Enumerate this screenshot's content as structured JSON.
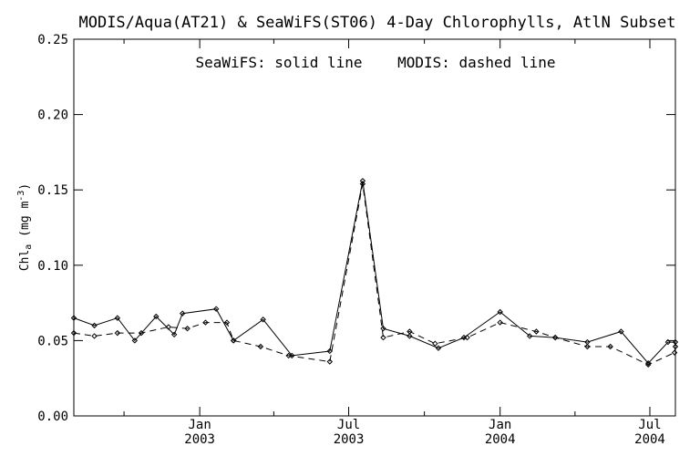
{
  "chart_data": {
    "type": "line",
    "title": "MODIS/Aqua(AT21) & SeaWiFS(ST06) 4-Day Chlorophylls, AtlN Subset",
    "annotation": "SeaWiFS: solid line    MODIS: dashed line",
    "ylabel": "Chl",
    "ylabel_sub": "a",
    "ylabel_unit": "(mg m",
    "ylabel_sup": "-3",
    "ylabel_close": ")",
    "ylim": [
      0.0,
      0.25
    ],
    "xlim": [
      "2002-08-01",
      "2004-08-01"
    ],
    "y_ticks": [
      "0.00",
      "0.05",
      "0.10",
      "0.15",
      "0.20",
      "0.25"
    ],
    "x_ticks": [
      {
        "date": "2003-01-01",
        "month": "Jan",
        "year": "2003"
      },
      {
        "date": "2003-07-01",
        "month": "Jul",
        "year": "2003"
      },
      {
        "date": "2004-01-01",
        "month": "Jan",
        "year": "2004"
      },
      {
        "date": "2004-07-01",
        "month": "Jul",
        "year": "2004"
      }
    ],
    "x_minor_ticks": [
      "2002-10-01",
      "2003-04-01",
      "2003-10-01",
      "2004-04-01"
    ],
    "series": [
      {
        "name": "SeaWiFS",
        "style": "solid",
        "color": "#000000",
        "points": [
          [
            "2002-08-01",
            0.065
          ],
          [
            "2002-08-26",
            0.06
          ],
          [
            "2002-09-23",
            0.065
          ],
          [
            "2002-10-14",
            0.05
          ],
          [
            "2002-11-09",
            0.066
          ],
          [
            "2002-12-01",
            0.054
          ],
          [
            "2002-12-11",
            0.068
          ],
          [
            "2003-01-21",
            0.071
          ],
          [
            "2003-02-11",
            0.05
          ],
          [
            "2003-03-19",
            0.064
          ],
          [
            "2003-04-23",
            0.04
          ],
          [
            "2003-06-08",
            0.043
          ],
          [
            "2003-07-18",
            0.156
          ],
          [
            "2003-08-12",
            0.058
          ],
          [
            "2003-09-13",
            0.053
          ],
          [
            "2003-10-18",
            0.045
          ],
          [
            "2003-11-18",
            0.052
          ],
          [
            "2004-01-01",
            0.069
          ],
          [
            "2004-02-06",
            0.053
          ],
          [
            "2004-03-08",
            0.052
          ],
          [
            "2004-04-16",
            0.049
          ],
          [
            "2004-05-27",
            0.056
          ],
          [
            "2004-06-29",
            0.035
          ],
          [
            "2004-07-23",
            0.049
          ],
          [
            "2004-08-01",
            0.049
          ]
        ]
      },
      {
        "name": "MODIS",
        "style": "dashed",
        "color": "#000000",
        "points": [
          [
            "2002-08-01",
            0.055
          ],
          [
            "2002-08-26",
            0.053
          ],
          [
            "2002-09-23",
            0.055
          ],
          [
            "2002-10-22",
            0.055
          ],
          [
            "2002-11-24",
            0.059
          ],
          [
            "2002-12-17",
            0.058
          ],
          [
            "2003-01-08",
            0.062
          ],
          [
            "2003-02-03",
            0.062
          ],
          [
            "2003-02-11",
            0.05
          ],
          [
            "2003-03-16",
            0.046
          ],
          [
            "2003-04-19",
            0.04
          ],
          [
            "2003-06-08",
            0.036
          ],
          [
            "2003-07-18",
            0.154
          ],
          [
            "2003-08-12",
            0.052
          ],
          [
            "2003-09-13",
            0.056
          ],
          [
            "2003-10-14",
            0.048
          ],
          [
            "2003-11-22",
            0.052
          ],
          [
            "2004-01-01",
            0.062
          ],
          [
            "2004-02-14",
            0.056
          ],
          [
            "2004-03-08",
            0.052
          ],
          [
            "2004-04-16",
            0.046
          ],
          [
            "2004-05-14",
            0.046
          ],
          [
            "2004-06-29",
            0.034
          ],
          [
            "2004-07-31",
            0.042
          ],
          [
            "2004-08-01",
            0.046
          ]
        ]
      }
    ],
    "grid": false,
    "legend": "text annotation at top-center"
  }
}
